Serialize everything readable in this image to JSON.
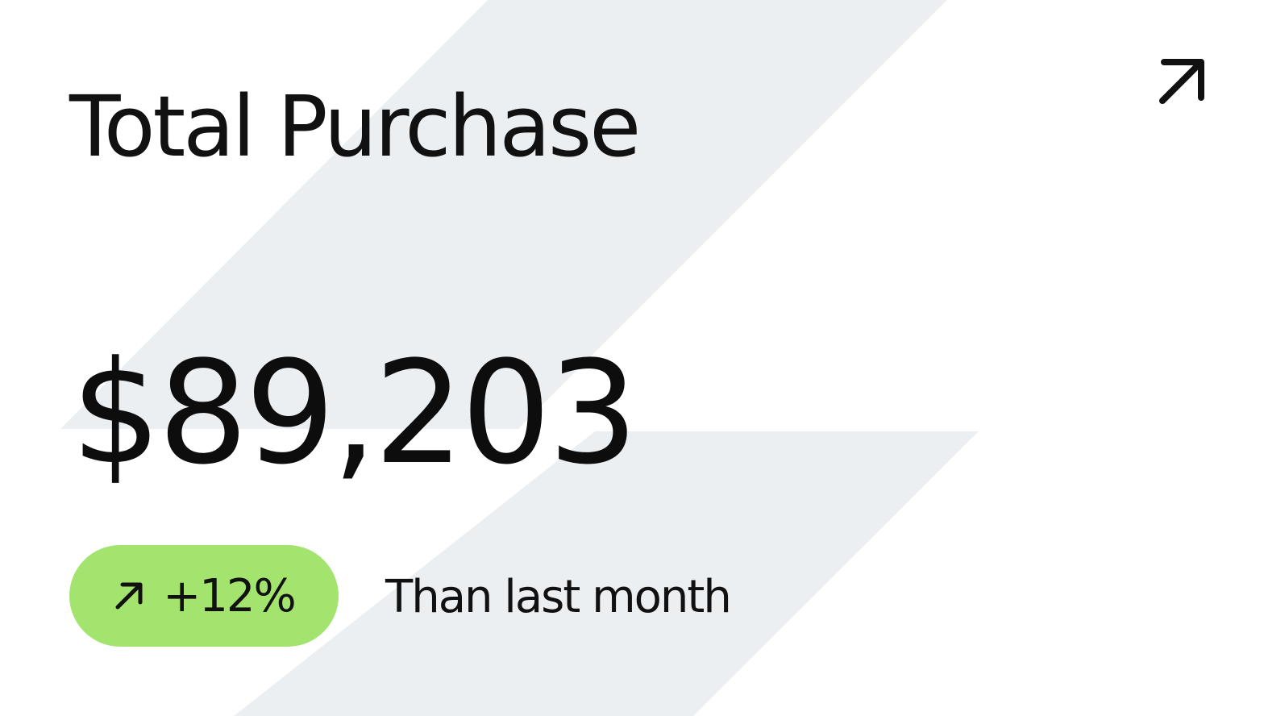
{
  "card": {
    "title": "Total Purchase",
    "value": "$89,203",
    "change": {
      "text": "+12%",
      "direction": "up",
      "color": "#a3e46f",
      "icon": "arrow-up-right-icon"
    },
    "comparison": "Than last month",
    "open_button_icon": "arrow-up-right-icon",
    "pattern_color": "#eceff2"
  }
}
